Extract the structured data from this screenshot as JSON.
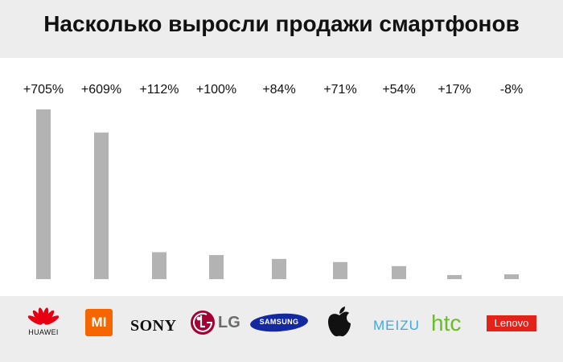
{
  "title": "Насколько выросли продажи смартфонов",
  "colors": {
    "bar": "#b3b3b3",
    "background": "#ededed"
  },
  "chart_data": {
    "type": "bar",
    "title": "Насколько выросли продажи смартфонов",
    "categories": [
      "HUAWEI",
      "MI",
      "SONY",
      "LG",
      "SAMSUNG",
      "Apple",
      "MEIZU",
      "htc",
      "Lenovo"
    ],
    "values": [
      705,
      609,
      112,
      100,
      84,
      71,
      54,
      17,
      -8
    ],
    "labels": [
      "+705%",
      "+609%",
      "+112%",
      "+100%",
      "+84%",
      "+71%",
      "+54%",
      "+17%",
      "-8%"
    ],
    "grid": false,
    "legend": "none"
  },
  "logos": {
    "huawei": {
      "text": "HUAWEI",
      "color": "#e60012",
      "icon": "huawei-petals-icon"
    },
    "xiaomi": {
      "text": "MI",
      "color": "#f56600",
      "icon": "mi-logo-icon"
    },
    "sony": {
      "text": "SONY",
      "color": "#111111"
    },
    "lg": {
      "text": "LG",
      "color": "#a50034",
      "icon": "lg-face-icon"
    },
    "samsung": {
      "text": "SAMSUNG",
      "color": "#1428a0"
    },
    "apple": {
      "color": "#111111",
      "icon": "apple-icon"
    },
    "meizu": {
      "text": "MEIZU",
      "color": "#3fa9e0"
    },
    "htc": {
      "text": "htc",
      "color": "#69be28"
    },
    "lenovo": {
      "text": "Lenovo",
      "color": "#e2231a"
    }
  }
}
